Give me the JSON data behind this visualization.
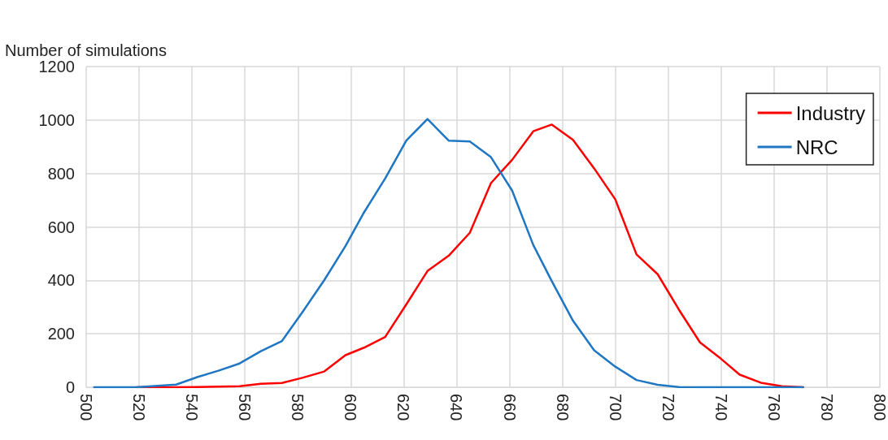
{
  "chart_data": {
    "type": "line",
    "ylabel": "Number of simulations",
    "x": [
      503,
      511,
      519,
      527,
      534,
      542,
      550,
      558,
      566,
      574,
      582,
      590,
      598,
      605,
      613,
      621,
      629,
      637,
      645,
      653,
      661,
      669,
      676,
      684,
      692,
      700,
      708,
      716,
      724,
      732,
      740,
      747,
      755,
      763,
      771
    ],
    "series": [
      {
        "name": "Industry",
        "color": "#ff0000",
        "values": [
          null,
          null,
          0,
          0,
          0,
          1,
          2,
          4,
          13,
          16,
          36,
          59,
          120,
          148,
          188,
          310,
          435,
          492,
          578,
          764,
          851,
          958,
          983,
          926,
          819,
          703,
          497,
          423,
          291,
          168,
          106,
          47,
          17,
          4,
          0
        ]
      },
      {
        "name": "NRC",
        "color": "#1f77c4",
        "values": [
          0,
          0,
          0,
          5,
          10,
          38,
          62,
          89,
          135,
          173,
          285,
          401,
          528,
          654,
          781,
          923,
          1004,
          923,
          920,
          861,
          736,
          532,
          397,
          249,
          138,
          77,
          27,
          9,
          1,
          0,
          0,
          0,
          0,
          0,
          0
        ]
      }
    ],
    "xlim": [
      500,
      800
    ],
    "xticks": [
      500,
      520,
      540,
      560,
      580,
      600,
      620,
      640,
      660,
      680,
      700,
      720,
      740,
      760,
      780,
      800
    ],
    "ylim": [
      0,
      1200
    ],
    "yticks": [
      0,
      200,
      400,
      600,
      800,
      1000,
      1200
    ],
    "grid": true,
    "legend": "top right",
    "marker": "none",
    "line_style": "solid"
  }
}
